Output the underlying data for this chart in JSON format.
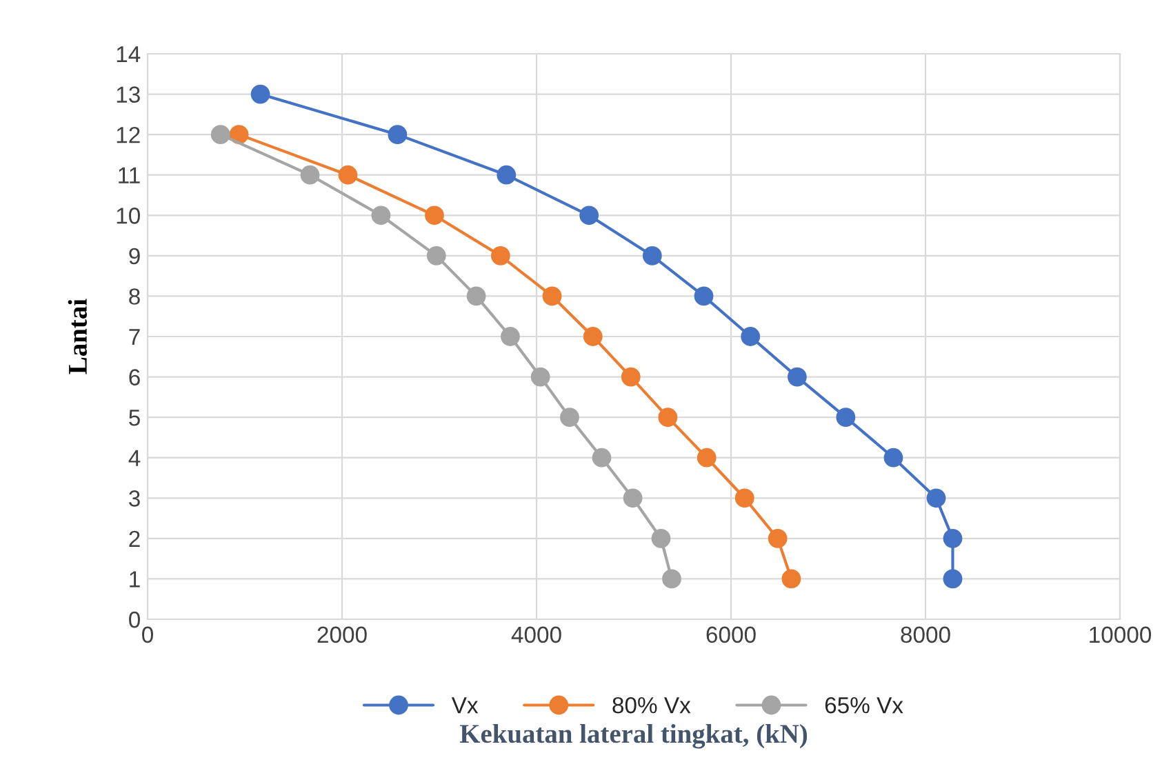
{
  "chart_data": {
    "type": "line",
    "xlabel": "Kekuatan lateral tingkat, (kN)",
    "ylabel": "Lantai",
    "xlim": [
      0,
      10000
    ],
    "xticks": [
      0,
      2000,
      4000,
      6000,
      8000,
      10000
    ],
    "ylim": [
      0,
      14
    ],
    "yticks": [
      0,
      1,
      2,
      3,
      4,
      5,
      6,
      7,
      8,
      9,
      10,
      11,
      12,
      13,
      14
    ],
    "grid": true,
    "legend": "bottom",
    "marker": "circle",
    "line_style": "solid",
    "series": [
      {
        "name": "Vx",
        "color": "#4472c4",
        "x": [
          1160,
          2570,
          3690,
          4540,
          5190,
          5720,
          6200,
          6680,
          7180,
          7670,
          8110,
          8280,
          8280
        ],
        "values": [
          13,
          12,
          11,
          10,
          9,
          8,
          7,
          6,
          5,
          4,
          3,
          2,
          1
        ]
      },
      {
        "name": "80% Vx",
        "color": "#ed7d31",
        "x": [
          940,
          2060,
          2950,
          3630,
          4160,
          4580,
          4970,
          5350,
          5750,
          6140,
          6480,
          6620
        ],
        "values": [
          12,
          11,
          10,
          9,
          8,
          7,
          6,
          5,
          4,
          3,
          2,
          1
        ]
      },
      {
        "name": "65% Vx",
        "color": "#a5a5a5",
        "x": [
          750,
          1670,
          2400,
          2970,
          3380,
          3730,
          4040,
          4340,
          4670,
          4990,
          5280,
          5390
        ],
        "values": [
          12,
          11,
          10,
          9,
          8,
          7,
          6,
          5,
          4,
          3,
          2,
          1
        ]
      }
    ]
  }
}
